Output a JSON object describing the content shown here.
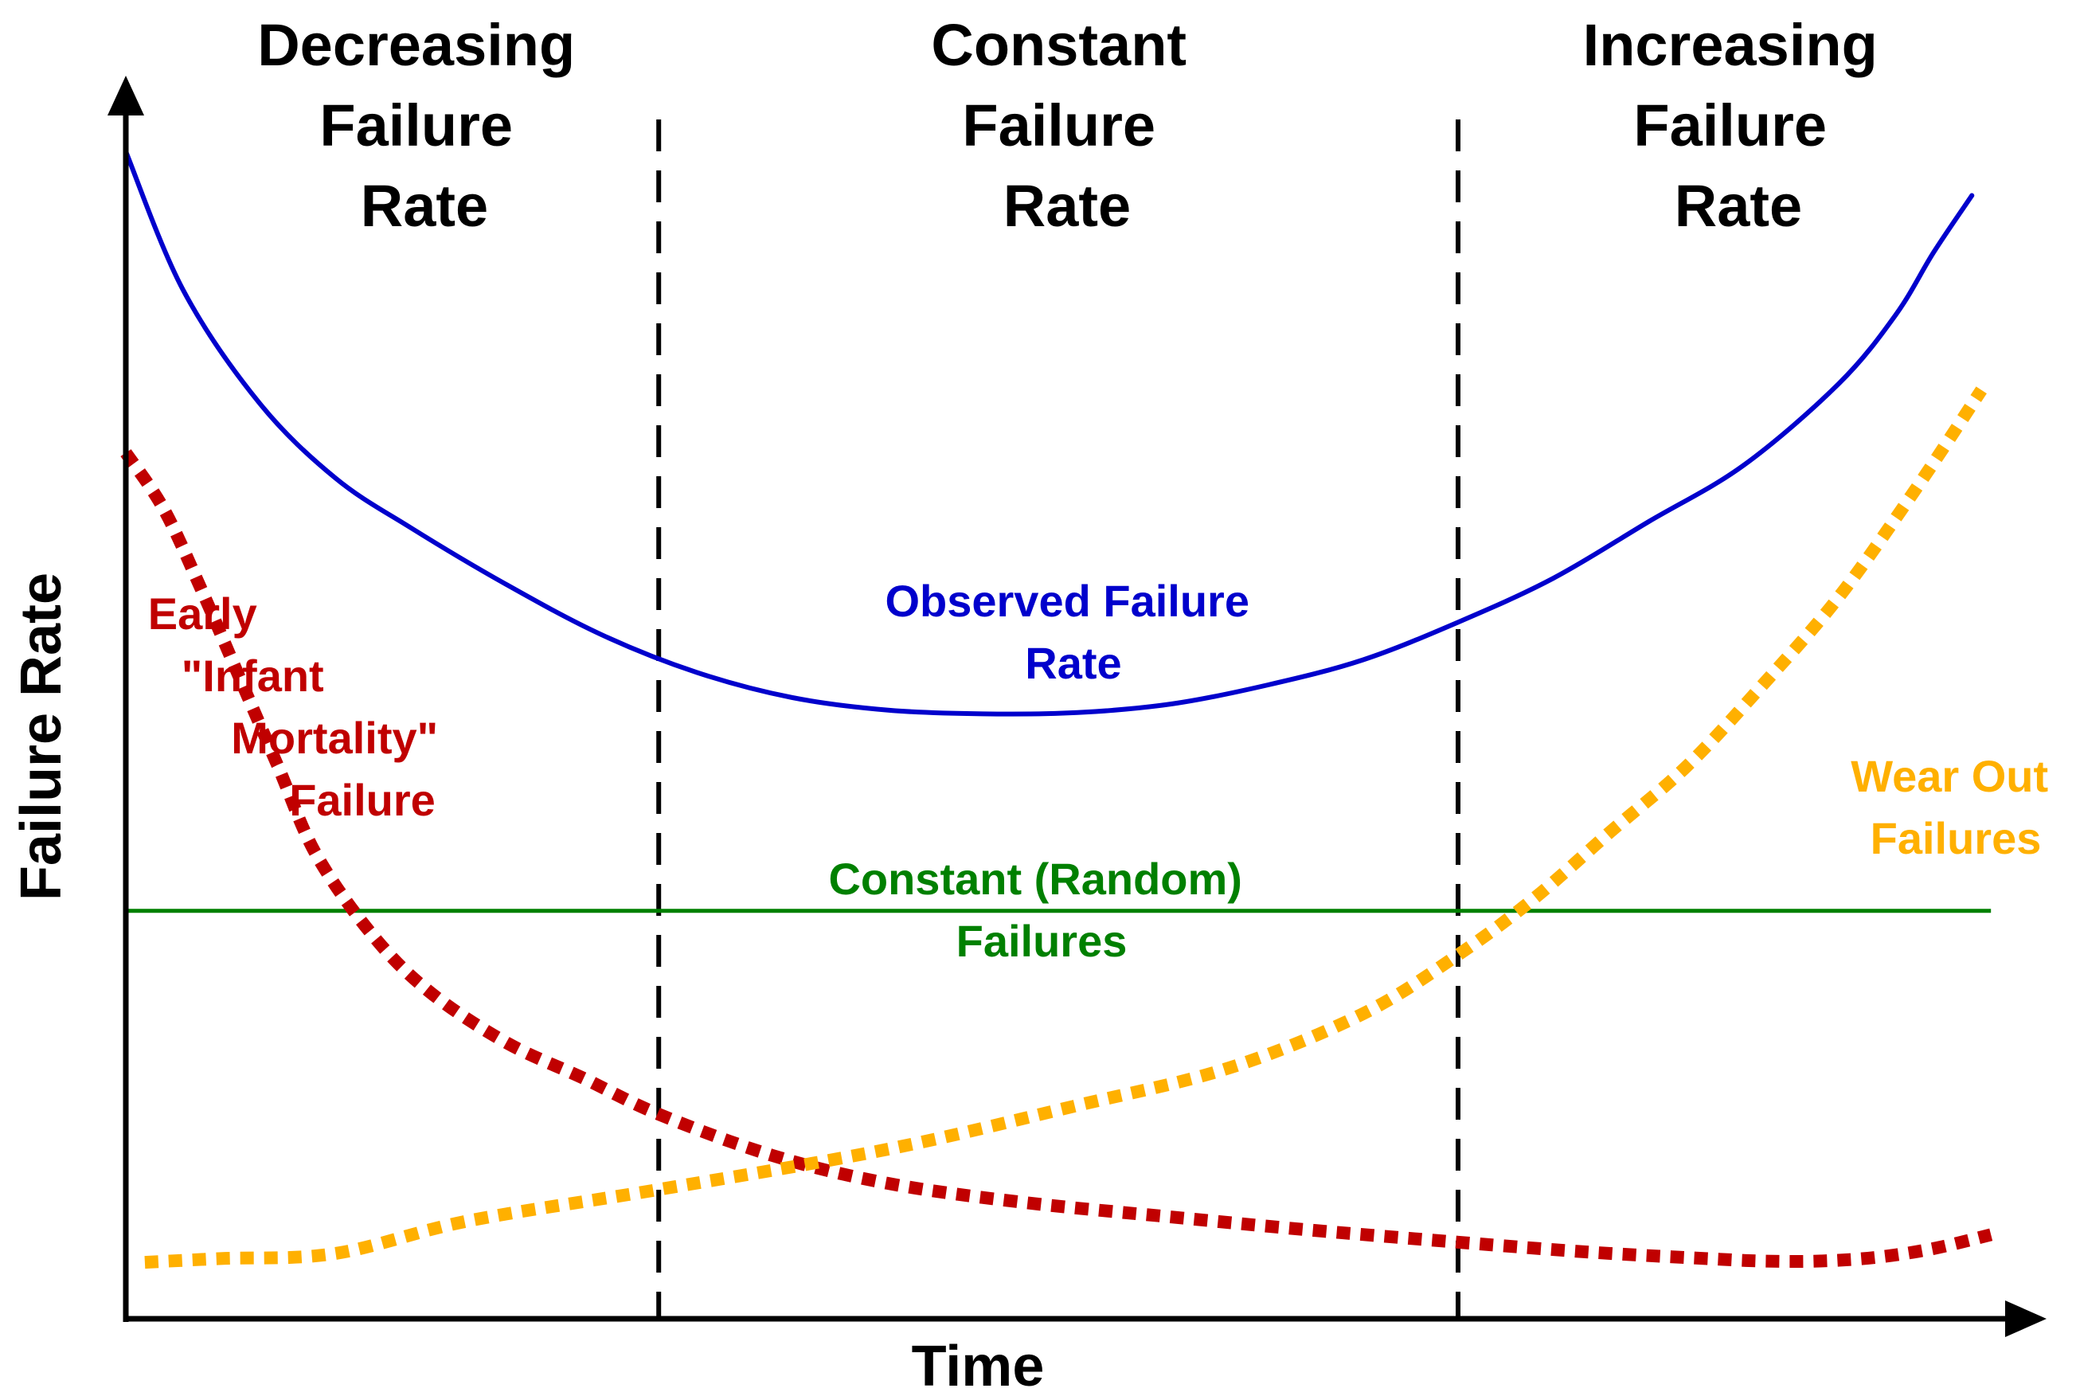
{
  "chart_data": {
    "type": "line",
    "title": "",
    "xlabel": "Time",
    "ylabel": "Failure Rate",
    "x_range": [
      0,
      100
    ],
    "y_range": [
      0,
      100
    ],
    "phase_boundaries": [
      28,
      70
    ],
    "phases": [
      {
        "lines": [
          "Decreasing",
          "Failure",
          "Rate"
        ]
      },
      {
        "lines": [
          "Constant",
          "Failure",
          "Rate"
        ]
      },
      {
        "lines": [
          "Increasing",
          "Failure",
          "Rate"
        ]
      }
    ],
    "series": [
      {
        "name": "Observed Failure Rate",
        "label_lines": [
          "Observed Failure",
          "Rate"
        ],
        "color": "#0000cc",
        "style": "solid",
        "x": [
          0,
          3,
          7,
          11,
          15,
          20,
          25,
          30,
          35,
          40,
          45,
          50,
          55,
          60,
          65,
          70,
          75,
          80,
          85,
          90,
          93,
          95,
          97
        ],
        "y": [
          93,
          82,
          73,
          67,
          63,
          58.5,
          54.5,
          51.5,
          49.5,
          48.5,
          48.2,
          48.3,
          49,
          50.5,
          52.5,
          55.5,
          59,
          63.5,
          68,
          74.5,
          80,
          85,
          89.5
        ]
      },
      {
        "name": "Constant (Random) Failures",
        "label_lines": [
          "Constant (Random)",
          "Failures"
        ],
        "color": "#008000",
        "style": "solid",
        "x": [
          0,
          98
        ],
        "y": [
          32.5,
          32.5
        ]
      },
      {
        "name": "Early \"Infant Mortality\" Failure",
        "label_lines": [
          "Early",
          "\"Infant",
          "Mortality\"",
          "Failure"
        ],
        "color": "#c00000",
        "style": "dotted",
        "x": [
          0,
          2,
          4,
          6,
          8,
          10,
          13,
          16,
          20,
          24,
          28,
          34,
          40,
          47,
          55,
          62,
          70,
          77,
          83,
          86,
          89,
          92,
          95,
          98
        ],
        "y": [
          69,
          64.5,
          58,
          51,
          44,
          37,
          30.5,
          26,
          22,
          19.2,
          16.3,
          13,
          10.8,
          9.3,
          8.1,
          7.1,
          6.1,
          5.3,
          4.8,
          4.6,
          4.6,
          4.9,
          5.6,
          6.7
        ]
      },
      {
        "name": "Wear Out Failures",
        "label_lines": [
          "Wear Out",
          "Failures"
        ],
        "color": "#ffb000",
        "style": "dotted",
        "x": [
          1,
          5,
          11,
          18,
          28,
          40,
          50,
          58,
          65,
          70,
          74,
          78,
          82,
          86,
          90,
          94,
          97.5
        ],
        "y": [
          4.5,
          4.8,
          5.2,
          7.8,
          10.3,
          13.5,
          17,
          20,
          24.3,
          29,
          33.5,
          38.8,
          44,
          50.5,
          57.5,
          66,
          74
        ]
      }
    ]
  }
}
